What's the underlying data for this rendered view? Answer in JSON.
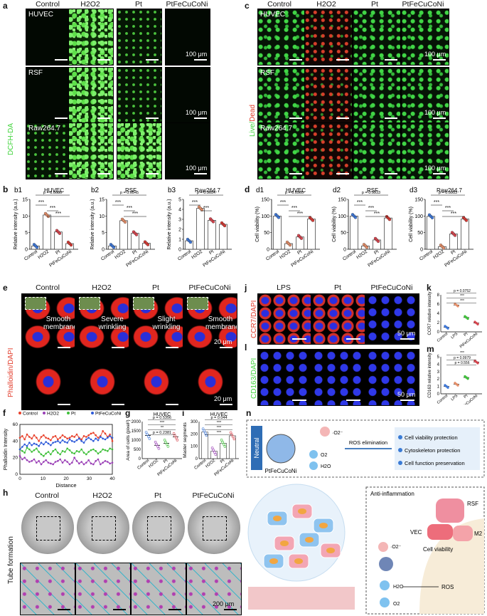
{
  "panels": {
    "a": "a",
    "b": "b",
    "c": "c",
    "d": "d",
    "e": "e",
    "f": "f",
    "g": "g",
    "h": "h",
    "i": "i",
    "j": "j",
    "k": "k",
    "l": "l",
    "m": "m",
    "n": "n"
  },
  "groups": [
    "Control",
    "H2O2",
    "Pt",
    "PtFeCuCoNi"
  ],
  "cell_lines": [
    "HUVEC",
    "RSF",
    "Raw264.7"
  ],
  "stains": {
    "a": "DCFH-DA",
    "c_live": "Live/",
    "c_dead": "Dead",
    "e": "Phalloidin/DAPI",
    "j": "CCR7/DAPI",
    "l": "CD163/DAPI",
    "h": "Tube formation"
  },
  "scalebars": {
    "a": "100 μm",
    "c": "100 μm",
    "e_top": "20 μm",
    "e_bottom": "20 μm",
    "j": "50 μm",
    "l": "50 μm",
    "h": "200 μm"
  },
  "e_annotations": [
    "Smooth membrane",
    "Severe wrinkling",
    "Slight wrinkling",
    "Smooth membrane"
  ],
  "j_groups": [
    "LPS",
    "Pt",
    "PtFeCuCoNi"
  ],
  "chart_data": [
    {
      "id": "b1",
      "type": "bar",
      "title": "HUVEC",
      "categories": [
        "Control",
        "H2O2",
        "Pt",
        "PtFeCuCoNi"
      ],
      "values": [
        1.0,
        10.3,
        5.2,
        1.7
      ],
      "ylabel": "Relative intensity (a.u.)",
      "ylim": [
        0,
        15
      ],
      "yticks": [
        0,
        5,
        10,
        15
      ],
      "sig": [
        {
          "text": "p = 0.0686"
        },
        {
          "text": "***"
        },
        {
          "text": "***"
        },
        {
          "text": "***"
        }
      ]
    },
    {
      "id": "b2",
      "type": "bar",
      "title": "RSF",
      "categories": [
        "Control",
        "H2O2",
        "Pt",
        "PtFeCuCoNi"
      ],
      "values": [
        1.0,
        8.6,
        4.8,
        1.8
      ],
      "ylabel": "Relative intensity (a.u.)",
      "ylim": [
        0,
        15
      ],
      "yticks": [
        0,
        5,
        10,
        15
      ],
      "sig": [
        {
          "text": "p = 0.0545"
        },
        {
          "text": "***"
        },
        {
          "text": "***"
        },
        {
          "text": "***"
        }
      ]
    },
    {
      "id": "b3",
      "type": "bar",
      "title": "Raw264.7",
      "categories": [
        "Control",
        "H2O2",
        "Pt",
        "PtFeCuCoNi"
      ],
      "values": [
        0.85,
        4.1,
        2.9,
        2.5
      ],
      "ylabel": "Relative intensity (a.u.)",
      "ylim": [
        0,
        5
      ],
      "yticks": [
        0,
        1,
        2,
        3,
        4,
        5
      ],
      "sig": [
        {
          "text": "p = 0.3634"
        },
        {
          "text": "***"
        },
        {
          "text": "***"
        }
      ]
    },
    {
      "id": "d1",
      "type": "bar",
      "title": "HUVEC",
      "categories": [
        "Control",
        "H2O2",
        "Pt",
        "PtFeCuCoNi"
      ],
      "values": [
        100,
        17,
        37,
        91
      ],
      "ylabel": "Cell viability (%)",
      "ylim": [
        0,
        150
      ],
      "yticks": [
        0,
        50,
        100,
        150
      ],
      "sig": [
        {
          "text": "p = 0.0505"
        },
        {
          "text": "***"
        },
        {
          "text": "***"
        },
        {
          "text": "***"
        }
      ]
    },
    {
      "id": "d2",
      "type": "bar",
      "title": "RSF",
      "categories": [
        "Control",
        "H2O2",
        "Pt",
        "PtFeCuCoNi"
      ],
      "values": [
        100,
        10,
        28,
        94
      ],
      "ylabel": "Cell viability (%)",
      "ylim": [
        0,
        150
      ],
      "yticks": [
        0,
        50,
        100,
        150
      ],
      "sig": [
        {
          "text": "p = 0.5933"
        },
        {
          "text": "***"
        },
        {
          "text": "***"
        },
        {
          "text": "***"
        }
      ]
    },
    {
      "id": "d3",
      "type": "bar",
      "title": "Raw264.7",
      "categories": [
        "Control",
        "H2O2",
        "Pt",
        "PtFeCuCoNi"
      ],
      "values": [
        99,
        8,
        46,
        91
      ],
      "ylabel": "Cell viability (%)",
      "ylim": [
        0,
        150
      ],
      "yticks": [
        0,
        50,
        100,
        150
      ],
      "sig": [
        {
          "text": "p = 0.5933"
        },
        {
          "text": "***"
        },
        {
          "text": "***"
        },
        {
          "text": "***"
        }
      ]
    },
    {
      "id": "f",
      "type": "line",
      "xlabel": "Distance",
      "ylabel": "Phalloidin Intensity",
      "xlim": [
        0,
        40
      ],
      "ylim": [
        0,
        60
      ],
      "series": [
        {
          "name": "Control",
          "color": "#e8402a",
          "values": [
            44,
            46,
            42,
            48,
            45,
            43,
            47,
            44,
            40,
            45,
            47,
            44,
            43,
            41,
            45,
            46,
            42,
            44,
            47,
            45,
            43,
            44,
            46,
            45,
            48,
            44,
            42,
            46,
            45,
            47,
            49,
            50,
            47,
            44,
            46,
            52,
            49,
            45,
            48,
            40
          ]
        },
        {
          "name": "H2O2",
          "color": "#9a3fb6",
          "values": [
            22,
            18,
            20,
            17,
            15,
            16,
            18,
            14,
            16,
            12,
            15,
            17,
            14,
            13,
            12,
            15,
            16,
            18,
            14,
            17,
            15,
            12,
            14,
            20,
            16,
            13,
            15,
            12,
            14,
            17,
            13,
            12,
            16,
            18,
            12,
            14,
            16,
            15,
            13,
            14
          ]
        },
        {
          "name": "Pt",
          "color": "#3fbf3a",
          "values": [
            30,
            28,
            26,
            32,
            30,
            27,
            29,
            31,
            27,
            24,
            22,
            25,
            27,
            24,
            28,
            30,
            26,
            24,
            28,
            27,
            31,
            29,
            26,
            25,
            28,
            27,
            30,
            26,
            24,
            27,
            29,
            30,
            28,
            25,
            27,
            30,
            29,
            28,
            31,
            30
          ]
        },
        {
          "name": "PtFeCuCoNi",
          "color": "#2e5bd9",
          "values": [
            30,
            33,
            36,
            34,
            38,
            35,
            37,
            36,
            34,
            38,
            36,
            39,
            37,
            35,
            38,
            39,
            40,
            38,
            41,
            39,
            38,
            42,
            40,
            39,
            41,
            43,
            40,
            38,
            42,
            44,
            42,
            40,
            43,
            41,
            45,
            43,
            42,
            44,
            46,
            44
          ]
        }
      ]
    },
    {
      "id": "g",
      "type": "scatter",
      "title": "HUVEC",
      "categories": [
        "Control",
        "H2O2",
        "Pt",
        "PtFeCuCoNi"
      ],
      "values": [
        1250,
        720,
        830,
        1180
      ],
      "ylabel": "Area of cells (pixel²)",
      "ylim": [
        0,
        2000
      ],
      "yticks": [
        0,
        500,
        1000,
        1500,
        2000
      ],
      "sig": [
        {
          "text": "p = 0.5356"
        },
        {
          "text": "***"
        },
        {
          "text": "**"
        },
        {
          "text": "p = 0.2381"
        }
      ]
    },
    {
      "id": "i",
      "type": "bar",
      "title": "HUVEC",
      "categories": [
        "Control",
        "H2O2",
        "Pt",
        "PtFeCuCoNi"
      ],
      "values": [
        215,
        60,
        125,
        185
      ],
      "ylabel": "Master segments",
      "ylim": [
        0,
        300
      ],
      "yticks": [
        0,
        100,
        200,
        300
      ],
      "sig": [
        {
          "text": "p = 0.044"
        },
        {
          "text": "***"
        },
        {
          "text": "***"
        },
        {
          "text": "***"
        }
      ]
    },
    {
      "id": "k",
      "type": "scatter",
      "categories": [
        "Control",
        "LPS",
        "Pt",
        "PtFeCuCoNi"
      ],
      "values": [
        1.0,
        5.8,
        3.1,
        1.9
      ],
      "ylabel": "CCR7 relative intensity",
      "ylim": [
        0,
        8
      ],
      "yticks": [
        0,
        2,
        4,
        6,
        8
      ],
      "sig": [
        {
          "text": "p = 0.0752"
        },
        {
          "text": "***"
        },
        {
          "text": "***"
        }
      ]
    },
    {
      "id": "m",
      "type": "scatter",
      "categories": [
        "Control",
        "LPS",
        "Pt",
        "PtFeCuCoNi"
      ],
      "values": [
        1.0,
        1.3,
        2.2,
        4.3
      ],
      "ylabel": "CD163 relative intensity",
      "ylim": [
        0,
        5
      ],
      "yticks": [
        0,
        1,
        2,
        3,
        4,
        5
      ],
      "sig": [
        {
          "text": "***"
        },
        {
          "text": "p = 0.0979"
        },
        {
          "text": "p = 0.556"
        }
      ]
    }
  ],
  "legend_f": [
    "Control",
    "H2O2",
    "Pt",
    "PtFeCuCoNi"
  ],
  "schematic": {
    "neutral": "Neutral",
    "superoxide": "·O2⁻",
    "ros_elimination": "ROS elimination",
    "o2": "O2",
    "h2o": "H2O",
    "particle": "PtFeCuCoNi",
    "benefits": [
      "Cell viability protection",
      "Cytoskeleton protection",
      "Cell function preservation"
    ],
    "anti_inflammation": "Anti-inflammation",
    "rsf": "RSF",
    "vec": "VEC",
    "m2": "M2",
    "cell_viability": "Cell viability",
    "ros": "ROS"
  }
}
